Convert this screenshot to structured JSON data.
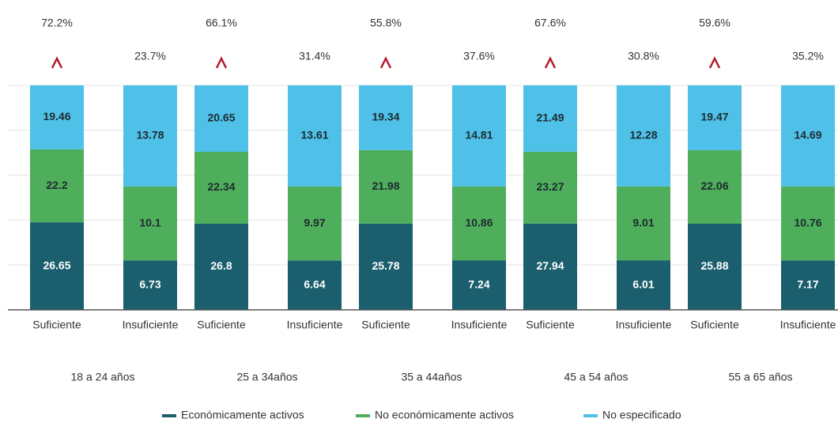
{
  "chart_data": {
    "type": "bar",
    "stacking": "percent",
    "categories": [
      "Suficiente",
      "Insuficiente",
      "Suficiente",
      "Insuficiente",
      "Suficiente",
      "Insuficiente",
      "Suficiente",
      "Insuficiente",
      "Suficiente",
      "Insuficiente"
    ],
    "groups": [
      "18 a 24 años",
      "25 a 34años",
      "35 a 44años",
      "45  a 54 años",
      "55 a 65 años"
    ],
    "series": [
      {
        "name": "Económicamente activos",
        "color": "#1b5f6e",
        "values": [
          26.65,
          6.73,
          26.8,
          6.64,
          25.78,
          7.24,
          27.94,
          6.01,
          25.88,
          7.17
        ]
      },
      {
        "name": "No económicamente activos",
        "color": "#4fae5c",
        "values": [
          22.2,
          10.1,
          22.34,
          9.97,
          21.98,
          10.86,
          23.27,
          9.01,
          22.06,
          10.76
        ]
      },
      {
        "name": "No especificado",
        "color": "#4fc1e9",
        "values": [
          19.46,
          13.78,
          20.65,
          13.61,
          19.34,
          14.81,
          21.49,
          12.28,
          19.47,
          14.69
        ]
      }
    ],
    "top_labels": {
      "values": [
        72.2,
        23.7,
        66.1,
        31.4,
        55.8,
        37.6,
        67.6,
        30.8,
        59.6,
        35.2
      ],
      "value_labels": [
        "72.2%",
        "23.7%",
        "66.1%",
        "31.4%",
        "55.8%",
        "37.6%",
        "67.6%",
        "30.8%",
        "59.6%",
        "35.2%"
      ]
    },
    "ylim": [
      0,
      100
    ],
    "yticks": [
      0,
      20,
      40,
      60,
      80,
      100
    ],
    "grid": true
  }
}
